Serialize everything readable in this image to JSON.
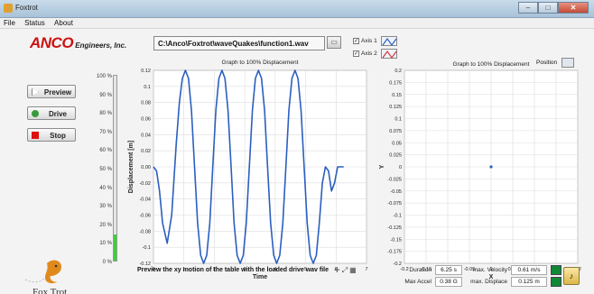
{
  "window": {
    "title": "Foxtrot"
  },
  "menu": [
    "File",
    "Status",
    "About"
  ],
  "logo": {
    "brand": "ANCO",
    "suffix": "Engineers, Inc."
  },
  "buttons": {
    "preview": "Preview",
    "drive": "Drive",
    "stop": "Stop"
  },
  "level_bar": {
    "ticks": [
      "100 %",
      "90 %",
      "80 %",
      "70 %",
      "60 %",
      "50 %",
      "40 %",
      "30 %",
      "20 %",
      "10 %",
      "0 %"
    ],
    "fill_percent": 14
  },
  "file": {
    "path": "C:\\Anco\\Foxtrot\\waveQuakes\\function1.wav"
  },
  "axes": [
    {
      "label": "Axis 1",
      "checked": true,
      "color": "#2b5fbf"
    },
    {
      "label": "Axis 2",
      "checked": true,
      "color": "#d23a3a"
    }
  ],
  "chart_data": [
    {
      "type": "line",
      "title": "Graph to 100% Displacement",
      "xlabel": "Time",
      "ylabel": "Displacement [m]",
      "xlim": [
        0,
        7
      ],
      "ylim": [
        -0.12,
        0.12
      ],
      "xticks": [
        "0",
        "1",
        "2",
        "3",
        "4",
        "5",
        "6",
        "7"
      ],
      "yticks": [
        "0.12",
        "0.1",
        "0.08",
        "0.06",
        "0.04",
        "0.02",
        "0.00",
        "-0.02",
        "-0.04",
        "-0.06",
        "-0.08",
        "-0.1",
        "-0.12"
      ],
      "series": [
        {
          "x": [
            0,
            0.1,
            0.2,
            0.3,
            0.45,
            0.6,
            0.75,
            0.85,
            0.95,
            1.05,
            1.15,
            1.25,
            1.35,
            1.45,
            1.55,
            1.65,
            1.75,
            1.85,
            1.95,
            2.05,
            2.15,
            2.25,
            2.35,
            2.45,
            2.55,
            2.65,
            2.75,
            2.85,
            2.95,
            3.05,
            3.15,
            3.25,
            3.35,
            3.45,
            3.55,
            3.65,
            3.75,
            3.85,
            3.95,
            4.05,
            4.15,
            4.25,
            4.35,
            4.45,
            4.55,
            4.65,
            4.75,
            4.85,
            4.95,
            5.05,
            5.15,
            5.25,
            5.35,
            5.45,
            5.55,
            5.65,
            5.75,
            5.85,
            5.95,
            6.05,
            6.15,
            6.25
          ],
          "y": [
            0.0,
            -0.005,
            -0.03,
            -0.07,
            -0.095,
            -0.06,
            0.03,
            0.08,
            0.11,
            0.12,
            0.11,
            0.07,
            0.0,
            -0.07,
            -0.11,
            -0.12,
            -0.11,
            -0.07,
            0.0,
            0.07,
            0.11,
            0.12,
            0.11,
            0.07,
            0.0,
            -0.07,
            -0.11,
            -0.12,
            -0.11,
            -0.07,
            0.0,
            0.07,
            0.11,
            0.12,
            0.11,
            0.07,
            0.0,
            -0.07,
            -0.11,
            -0.12,
            -0.11,
            -0.07,
            0.0,
            0.07,
            0.11,
            0.12,
            0.11,
            0.07,
            0.0,
            -0.07,
            -0.11,
            -0.12,
            -0.11,
            -0.07,
            -0.02,
            0.0,
            -0.005,
            -0.03,
            -0.02,
            0.0,
            0.0,
            0.0
          ],
          "color": "#2b5fbf"
        }
      ],
      "grid": true
    },
    {
      "type": "scatter",
      "title": "Graph to 100% Displacement",
      "xlabel": "X",
      "ylabel": "Y",
      "xlim": [
        -0.2,
        0.2
      ],
      "ylim": [
        -0.2,
        0.2
      ],
      "xticks": [
        "-0.2",
        "-0.15",
        "-0.1",
        "-0.05",
        "0",
        "0.05",
        "0.1",
        "0.15",
        "0.2"
      ],
      "yticks": [
        "0.2",
        "0.175",
        "0.15",
        "0.125",
        "0.1",
        "0.075",
        "0.05",
        "0.025",
        "0",
        "-0.025",
        "-0.05",
        "-0.075",
        "-0.1",
        "-0.125",
        "-0.15",
        "-0.175",
        "-0.2"
      ],
      "series": [
        {
          "x": [
            0
          ],
          "y": [
            0
          ],
          "color": "#2b5fbf"
        }
      ],
      "grid": true
    }
  ],
  "position": {
    "label": "Position"
  },
  "bottom_message": "Preview the xy motion of the table with the loaded drive wav file",
  "stats": {
    "duration": {
      "label": "Duration",
      "value": "6.25 s"
    },
    "max_accel": {
      "label": "Max Accel",
      "value": "0.38 G"
    },
    "max_velocity": {
      "label": "max. Velocity",
      "value": "0.61 m/s"
    },
    "max_displace": {
      "label": "max. Displace",
      "value": "0.125 m"
    }
  },
  "brand_footer": "Fox Trot"
}
